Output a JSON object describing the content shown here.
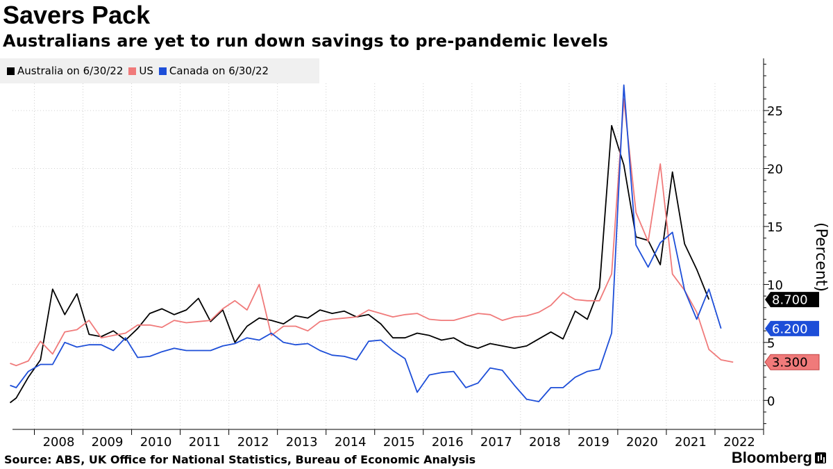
{
  "header": {
    "title": "Savers Pack",
    "subtitle": "Australians are yet to run down savings to pre-pandemic levels"
  },
  "footer": {
    "source": "Source: ABS, UK Office for National Statistics, Bureau of Economic Analysis",
    "brand": "Bloomberg"
  },
  "chart_data": {
    "type": "line",
    "ylabel": "(Percent)",
    "ylim": [
      -2.5,
      29.5
    ],
    "yticks": [
      0,
      5,
      10,
      15,
      20,
      25
    ],
    "xlim": [
      2007.55,
      2023.0
    ],
    "xticks": [
      "2008",
      "2009",
      "2010",
      "2011",
      "2012",
      "2013",
      "2014",
      "2015",
      "2016",
      "2017",
      "2018",
      "2019",
      "2020",
      "2021",
      "2022"
    ],
    "grid": true,
    "legend_position": "top-left",
    "series": [
      {
        "name": "Australia on 6/30/22",
        "color": "#000000",
        "end_label": "8.700",
        "end_value": 8.7,
        "points": [
          [
            2007.5,
            -0.2
          ],
          [
            2007.625,
            0.2
          ],
          [
            2007.875,
            2.0
          ],
          [
            2008.125,
            3.5
          ],
          [
            2008.375,
            9.6
          ],
          [
            2008.625,
            7.4
          ],
          [
            2008.875,
            9.2
          ],
          [
            2009.125,
            5.7
          ],
          [
            2009.375,
            5.5
          ],
          [
            2009.625,
            6.0
          ],
          [
            2009.875,
            5.2
          ],
          [
            2010.125,
            6.2
          ],
          [
            2010.375,
            7.5
          ],
          [
            2010.625,
            7.9
          ],
          [
            2010.875,
            7.4
          ],
          [
            2011.125,
            7.8
          ],
          [
            2011.375,
            8.8
          ],
          [
            2011.625,
            6.8
          ],
          [
            2011.875,
            7.8
          ],
          [
            2012.125,
            5.0
          ],
          [
            2012.375,
            6.4
          ],
          [
            2012.625,
            7.1
          ],
          [
            2012.875,
            6.9
          ],
          [
            2013.125,
            6.6
          ],
          [
            2013.375,
            7.3
          ],
          [
            2013.625,
            7.1
          ],
          [
            2013.875,
            7.8
          ],
          [
            2014.125,
            7.5
          ],
          [
            2014.375,
            7.7
          ],
          [
            2014.625,
            7.2
          ],
          [
            2014.875,
            7.4
          ],
          [
            2015.125,
            6.6
          ],
          [
            2015.375,
            5.4
          ],
          [
            2015.625,
            5.4
          ],
          [
            2015.875,
            5.8
          ],
          [
            2016.125,
            5.6
          ],
          [
            2016.375,
            5.2
          ],
          [
            2016.625,
            5.4
          ],
          [
            2016.875,
            4.8
          ],
          [
            2017.125,
            4.5
          ],
          [
            2017.375,
            4.9
          ],
          [
            2017.625,
            4.7
          ],
          [
            2017.875,
            4.5
          ],
          [
            2018.125,
            4.7
          ],
          [
            2018.375,
            5.3
          ],
          [
            2018.625,
            5.9
          ],
          [
            2018.875,
            5.3
          ],
          [
            2019.125,
            7.7
          ],
          [
            2019.375,
            7.0
          ],
          [
            2019.625,
            9.7
          ],
          [
            2019.875,
            23.7
          ],
          [
            2020.125,
            20.3
          ],
          [
            2020.375,
            14.1
          ],
          [
            2020.625,
            13.8
          ],
          [
            2020.875,
            11.7
          ],
          [
            2021.125,
            19.7
          ],
          [
            2021.375,
            13.5
          ],
          [
            2021.625,
            11.3
          ],
          [
            2021.875,
            8.7
          ]
        ]
      },
      {
        "name": "US",
        "color": "#f07a7a",
        "end_label": "3.300",
        "end_value": 3.3,
        "points": [
          [
            2007.5,
            3.2
          ],
          [
            2007.625,
            3.0
          ],
          [
            2007.875,
            3.4
          ],
          [
            2008.125,
            5.1
          ],
          [
            2008.375,
            4.0
          ],
          [
            2008.625,
            5.9
          ],
          [
            2008.875,
            6.1
          ],
          [
            2009.125,
            6.9
          ],
          [
            2009.375,
            5.4
          ],
          [
            2009.625,
            5.6
          ],
          [
            2009.875,
            5.8
          ],
          [
            2010.125,
            6.5
          ],
          [
            2010.375,
            6.5
          ],
          [
            2010.625,
            6.3
          ],
          [
            2010.875,
            6.9
          ],
          [
            2011.125,
            6.7
          ],
          [
            2011.375,
            6.8
          ],
          [
            2011.625,
            6.9
          ],
          [
            2011.875,
            7.9
          ],
          [
            2012.125,
            8.6
          ],
          [
            2012.375,
            7.8
          ],
          [
            2012.625,
            10.0
          ],
          [
            2012.875,
            5.6
          ],
          [
            2013.125,
            6.4
          ],
          [
            2013.375,
            6.4
          ],
          [
            2013.625,
            6.0
          ],
          [
            2013.875,
            6.8
          ],
          [
            2014.125,
            7.0
          ],
          [
            2014.375,
            7.1
          ],
          [
            2014.625,
            7.2
          ],
          [
            2014.875,
            7.8
          ],
          [
            2015.125,
            7.5
          ],
          [
            2015.375,
            7.2
          ],
          [
            2015.625,
            7.4
          ],
          [
            2015.875,
            7.5
          ],
          [
            2016.125,
            7.0
          ],
          [
            2016.375,
            6.9
          ],
          [
            2016.625,
            6.9
          ],
          [
            2016.875,
            7.2
          ],
          [
            2017.125,
            7.5
          ],
          [
            2017.375,
            7.4
          ],
          [
            2017.625,
            6.9
          ],
          [
            2017.875,
            7.2
          ],
          [
            2018.125,
            7.3
          ],
          [
            2018.375,
            7.6
          ],
          [
            2018.625,
            8.2
          ],
          [
            2018.875,
            9.3
          ],
          [
            2019.125,
            8.7
          ],
          [
            2019.375,
            8.6
          ],
          [
            2019.625,
            8.6
          ],
          [
            2019.875,
            10.9
          ],
          [
            2020.125,
            26.0
          ],
          [
            2020.375,
            16.2
          ],
          [
            2020.625,
            13.7
          ],
          [
            2020.875,
            20.4
          ],
          [
            2021.125,
            10.9
          ],
          [
            2021.375,
            9.5
          ],
          [
            2021.625,
            7.6
          ],
          [
            2021.875,
            4.4
          ],
          [
            2022.125,
            3.5
          ],
          [
            2022.375,
            3.3
          ]
        ]
      },
      {
        "name": "Canada on 6/30/22",
        "color": "#1d4ed8",
        "end_label": "6.200",
        "end_value": 6.2,
        "points": [
          [
            2007.5,
            1.3
          ],
          [
            2007.625,
            1.1
          ],
          [
            2007.875,
            2.5
          ],
          [
            2008.125,
            3.1
          ],
          [
            2008.375,
            3.1
          ],
          [
            2008.625,
            5.0
          ],
          [
            2008.875,
            4.6
          ],
          [
            2009.125,
            4.8
          ],
          [
            2009.375,
            4.8
          ],
          [
            2009.625,
            4.3
          ],
          [
            2009.875,
            5.4
          ],
          [
            2010.125,
            3.7
          ],
          [
            2010.375,
            3.8
          ],
          [
            2010.625,
            4.2
          ],
          [
            2010.875,
            4.5
          ],
          [
            2011.125,
            4.3
          ],
          [
            2011.375,
            4.3
          ],
          [
            2011.625,
            4.3
          ],
          [
            2011.875,
            4.7
          ],
          [
            2012.125,
            4.9
          ],
          [
            2012.375,
            5.4
          ],
          [
            2012.625,
            5.2
          ],
          [
            2012.875,
            5.8
          ],
          [
            2013.125,
            5.0
          ],
          [
            2013.375,
            4.8
          ],
          [
            2013.625,
            4.9
          ],
          [
            2013.875,
            4.3
          ],
          [
            2014.125,
            3.9
          ],
          [
            2014.375,
            3.8
          ],
          [
            2014.625,
            3.5
          ],
          [
            2014.875,
            5.1
          ],
          [
            2015.125,
            5.2
          ],
          [
            2015.375,
            4.3
          ],
          [
            2015.625,
            3.6
          ],
          [
            2015.875,
            0.7
          ],
          [
            2016.125,
            2.2
          ],
          [
            2016.375,
            2.4
          ],
          [
            2016.625,
            2.5
          ],
          [
            2016.875,
            1.1
          ],
          [
            2017.125,
            1.5
          ],
          [
            2017.375,
            2.8
          ],
          [
            2017.625,
            2.6
          ],
          [
            2017.875,
            1.3
          ],
          [
            2018.125,
            0.1
          ],
          [
            2018.375,
            -0.1
          ],
          [
            2018.625,
            1.1
          ],
          [
            2018.875,
            1.1
          ],
          [
            2019.125,
            2.0
          ],
          [
            2019.375,
            2.5
          ],
          [
            2019.625,
            2.7
          ],
          [
            2019.875,
            5.8
          ],
          [
            2020.125,
            27.2
          ],
          [
            2020.375,
            13.4
          ],
          [
            2020.625,
            11.5
          ],
          [
            2020.875,
            13.6
          ],
          [
            2021.125,
            14.5
          ],
          [
            2021.375,
            9.5
          ],
          [
            2021.625,
            7.0
          ],
          [
            2021.875,
            9.6
          ],
          [
            2022.125,
            6.2
          ]
        ]
      }
    ]
  }
}
